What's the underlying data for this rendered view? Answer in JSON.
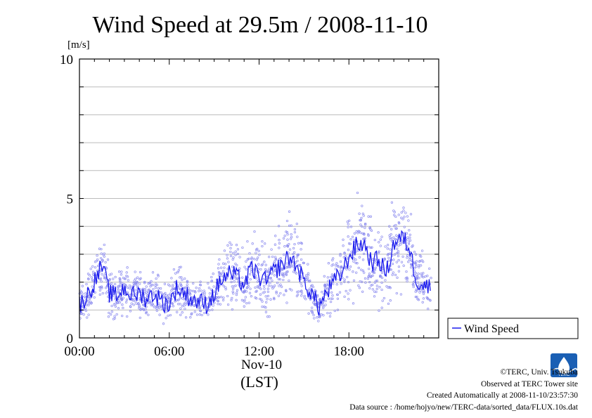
{
  "chart_data": {
    "type": "line",
    "title": "Wind Speed at 29.5m / 2008-11-10",
    "ylabel": "[m/s]",
    "xlabel": "(LST)",
    "date_label": "Nov-10",
    "x_ticks": [
      "00:00",
      "06:00",
      "12:00",
      "18:00"
    ],
    "x_tick_hours": [
      0,
      6,
      12,
      18
    ],
    "xlim_hours": [
      0,
      24
    ],
    "y_ticks": [
      "0",
      "5",
      "10"
    ],
    "y_tick_values": [
      0,
      5,
      10
    ],
    "ylim": [
      0,
      10
    ],
    "y_minor_step": 1,
    "grid": true,
    "legend": {
      "position": "right",
      "label": "Wind Speed"
    },
    "colors": {
      "line": "#1a1aee",
      "points": "#8a8aee",
      "grid": "#bbbbbb"
    },
    "series": [
      {
        "name": "Wind Speed",
        "hours": [
          0,
          0.5,
          1,
          1.5,
          2,
          2.5,
          3,
          3.5,
          4,
          4.5,
          5,
          5.5,
          6,
          6.5,
          7,
          7.5,
          8,
          8.5,
          9,
          9.5,
          10,
          10.5,
          11,
          11.5,
          12,
          12.5,
          13,
          13.5,
          14,
          14.5,
          15,
          15.5,
          16,
          16.5,
          17,
          17.5,
          18,
          18.5,
          19,
          19.5,
          20,
          20.5,
          21,
          21.5,
          22,
          22.5,
          23,
          23.5
        ],
        "values": [
          1.2,
          1.5,
          2.0,
          2.6,
          1.6,
          1.5,
          1.8,
          1.5,
          1.6,
          1.4,
          1.6,
          1.3,
          1.2,
          1.8,
          1.6,
          1.4,
          1.3,
          1.2,
          1.6,
          2.1,
          2.3,
          2.2,
          1.9,
          2.5,
          2.2,
          2.0,
          2.4,
          2.6,
          2.9,
          2.6,
          2.0,
          1.6,
          1.1,
          1.6,
          2.0,
          2.3,
          2.9,
          3.3,
          3.4,
          2.7,
          2.8,
          2.3,
          3.4,
          3.6,
          3.3,
          2.1,
          1.9,
          1.8
        ]
      }
    ]
  },
  "footer": {
    "copyright": "©TERC, Univ. Tsukuba",
    "observed": "Observed at TERC Tower site",
    "created": "Created Automatically at 2008-11-10/23:57:30",
    "source": "Data source : /home/hojyo/new/TERC-data/sorted_data/FLUX.10s.dat",
    "logo_text": "TERC"
  }
}
